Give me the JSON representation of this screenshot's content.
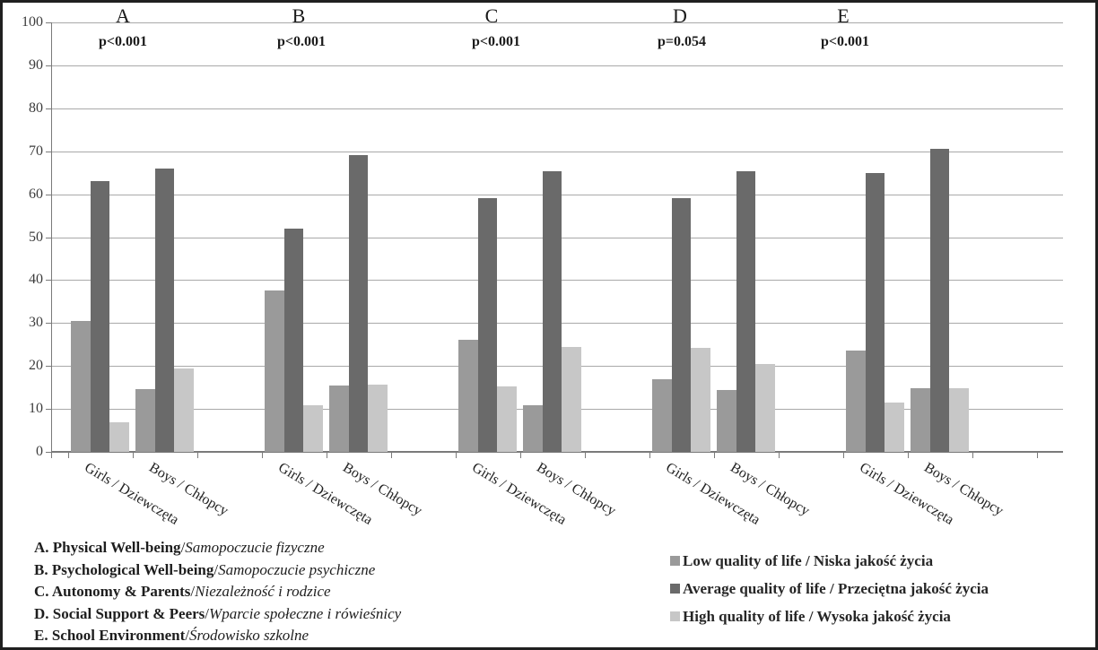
{
  "figure": {
    "background": "#ffffff",
    "border_color": "#1f1f1f"
  },
  "chart_data": {
    "type": "bar",
    "title": "",
    "xlabel": "",
    "ylabel": "",
    "ylim": [
      0,
      100
    ],
    "ytick_interval": 10,
    "grid": "horizontal",
    "legend_position": "bottom-right",
    "series": [
      {
        "name": "Low quality of life / Niska jakość życia",
        "color": "#9a9a9a"
      },
      {
        "name": "Average quality of life / Przeciętna jakość życia",
        "color": "#6a6a6a"
      },
      {
        "name": "High quality of life / Wysoka jakość życia",
        "color": "#c7c7c7"
      }
    ],
    "groups": [
      {
        "letter": "A",
        "p_value": "p<0.001",
        "clusters": [
          {
            "label": "Girls / Dziewczęta",
            "values": [
              30.4,
              63.0,
              6.8
            ]
          },
          {
            "label": "Boys / Chłopcy",
            "values": [
              14.6,
              66.0,
              19.4
            ]
          }
        ]
      },
      {
        "letter": "B",
        "p_value": "p<0.001",
        "clusters": [
          {
            "label": "Girls / Dziewczęta",
            "values": [
              37.5,
              52.0,
              10.8
            ]
          },
          {
            "label": "Boys / Chłopcy",
            "values": [
              15.5,
              69.0,
              15.6
            ]
          }
        ]
      },
      {
        "letter": "C",
        "p_value": "p<0.001",
        "clusters": [
          {
            "label": "Girls / Dziewczęta",
            "values": [
              26.2,
              59.0,
              15.2
            ]
          },
          {
            "label": "Boys / Chłopcy",
            "values": [
              10.8,
              65.3,
              24.5
            ]
          }
        ]
      },
      {
        "letter": "D",
        "p_value": "p=0.054",
        "clusters": [
          {
            "label": "Girls / Dziewczęta",
            "values": [
              17.0,
              59.0,
              24.2
            ]
          },
          {
            "label": "Boys / Chłopcy",
            "values": [
              14.4,
              65.3,
              20.5
            ]
          }
        ]
      },
      {
        "letter": "E",
        "p_value": "p<0.001",
        "clusters": [
          {
            "label": "Girls / Dziewczęta",
            "values": [
              23.5,
              65.0,
              11.4
            ]
          },
          {
            "label": "Boys / Chłopcy",
            "values": [
              14.8,
              70.5,
              14.8
            ]
          }
        ]
      }
    ]
  },
  "footnotes": [
    {
      "bold": "A. Physical Well-being",
      "sep": "/",
      "italic": "Samopoczucie fizyczne"
    },
    {
      "bold": "B. Psychological Well-being",
      "sep": "/",
      "italic": "Samopoczucie psychiczne"
    },
    {
      "bold": "C. Autonomy & Parents",
      "sep": "/",
      "italic": "Niezależność i rodzice"
    },
    {
      "bold": "D. Social Support & Peers",
      "sep": "/",
      "italic": "Wparcie społeczne i rówieśnicy"
    },
    {
      "bold": "E. School Environment",
      "sep": "/",
      "italic": "Środowisko szkolne"
    }
  ]
}
